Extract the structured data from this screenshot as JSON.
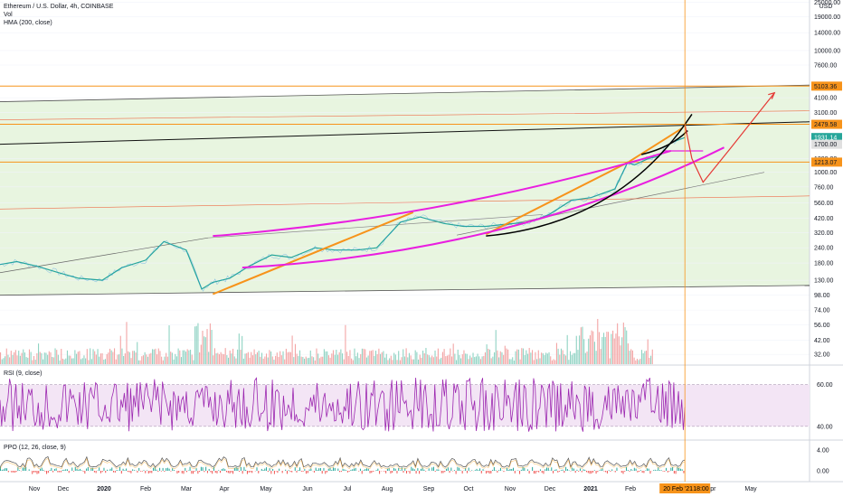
{
  "header": {
    "symbol_line": "Ethereum / U.S. Dollar, 4h, COINBASE",
    "vol_label": "Vol",
    "hma_label": "HMA (200, close)"
  },
  "rsi": {
    "label": "RSI (9, close)",
    "levels": [
      "60.00",
      "40.00"
    ]
  },
  "ppo": {
    "label": "PPO (12, 26, close, 9)",
    "levels": [
      "4.00",
      "0.00"
    ]
  },
  "price_axis": {
    "currency": "USD",
    "ticks": [
      "25000.00",
      "19000.00",
      "14000.00",
      "10000.00",
      "7600.00",
      "4100.00",
      "3100.00",
      "1300.00",
      "1000.00",
      "760.00",
      "560.00",
      "420.00",
      "320.00",
      "240.00",
      "180.00",
      "130.00",
      "98.00",
      "74.00",
      "56.00",
      "42.00",
      "32.00"
    ]
  },
  "price_tags": [
    {
      "text": "5103.36",
      "color": "#f7931a",
      "dark": true
    },
    {
      "text": "2479.58",
      "color": "#f7931a",
      "dark": true
    },
    {
      "text": "1931.14",
      "color": "#26a69a",
      "dark": false
    },
    {
      "text": "1700.00",
      "color": "#e0e0e0",
      "dark": true
    },
    {
      "text": "1213.07",
      "color": "#f7931a",
      "dark": true
    }
  ],
  "time_axis": {
    "labels": [
      "Nov",
      "Dec",
      "2020",
      "Feb",
      "Mar",
      "Apr",
      "May",
      "Jun",
      "Jul",
      "Aug",
      "Sep",
      "Oct",
      "Nov",
      "Dec",
      "2021",
      "Feb",
      "Apr",
      "May"
    ],
    "cursor_label": "20 Feb '21",
    "cursor_time": "18:00"
  },
  "colors": {
    "orange": "#f7931a",
    "magenta": "#e91ee0",
    "red": "#e53935",
    "black": "#000000",
    "green_bg": "#e8f5e0",
    "rsi_line": "#9c27b0",
    "rsi_band": "#f3e5f5",
    "ppo_line": "#555555",
    "ppo_hist_up": "#26a69a",
    "ppo_hist_down": "#ef5350"
  },
  "chart_data": {
    "type": "line",
    "title": "Ethereum / U.S. Dollar, 4h, COINBASE",
    "scale": "log",
    "ylim": [
      28,
      26000
    ],
    "x_range": [
      "2019-10-20",
      "2021-05-20"
    ],
    "series": [
      {
        "name": "ETH/USD",
        "x": [
          "2019-10-20",
          "2019-11-01",
          "2019-11-15",
          "2019-12-01",
          "2019-12-15",
          "2020-01-01",
          "2020-01-15",
          "2020-02-01",
          "2020-02-14",
          "2020-03-01",
          "2020-03-12",
          "2020-03-20",
          "2020-04-01",
          "2020-04-15",
          "2020-05-01",
          "2020-05-15",
          "2020-06-01",
          "2020-06-15",
          "2020-07-01",
          "2020-07-15",
          "2020-08-01",
          "2020-08-15",
          "2020-09-01",
          "2020-09-15",
          "2020-10-01",
          "2020-10-15",
          "2020-11-01",
          "2020-11-15",
          "2020-12-01",
          "2020-12-15",
          "2021-01-01",
          "2021-01-10",
          "2021-01-15",
          "2021-01-25",
          "2021-02-01",
          "2021-02-10",
          "2021-02-20"
        ],
        "y": [
          175,
          185,
          170,
          150,
          135,
          130,
          165,
          190,
          270,
          230,
          110,
          125,
          135,
          170,
          210,
          200,
          240,
          230,
          230,
          240,
          390,
          430,
          380,
          360,
          360,
          375,
          390,
          450,
          590,
          620,
          730,
          1200,
          1150,
          1300,
          1350,
          1750,
          1930
        ]
      }
    ],
    "horizontal_levels": [
      {
        "value": 5103.36,
        "color": "orange"
      },
      {
        "value": 2479.58,
        "color": "orange"
      },
      {
        "value": 1213.07,
        "color": "orange"
      }
    ],
    "vertical_marker": "2021-02-20",
    "annotations": [
      "support/resistance trendlines",
      "parabolic curve",
      "projected path to ~4500"
    ]
  }
}
